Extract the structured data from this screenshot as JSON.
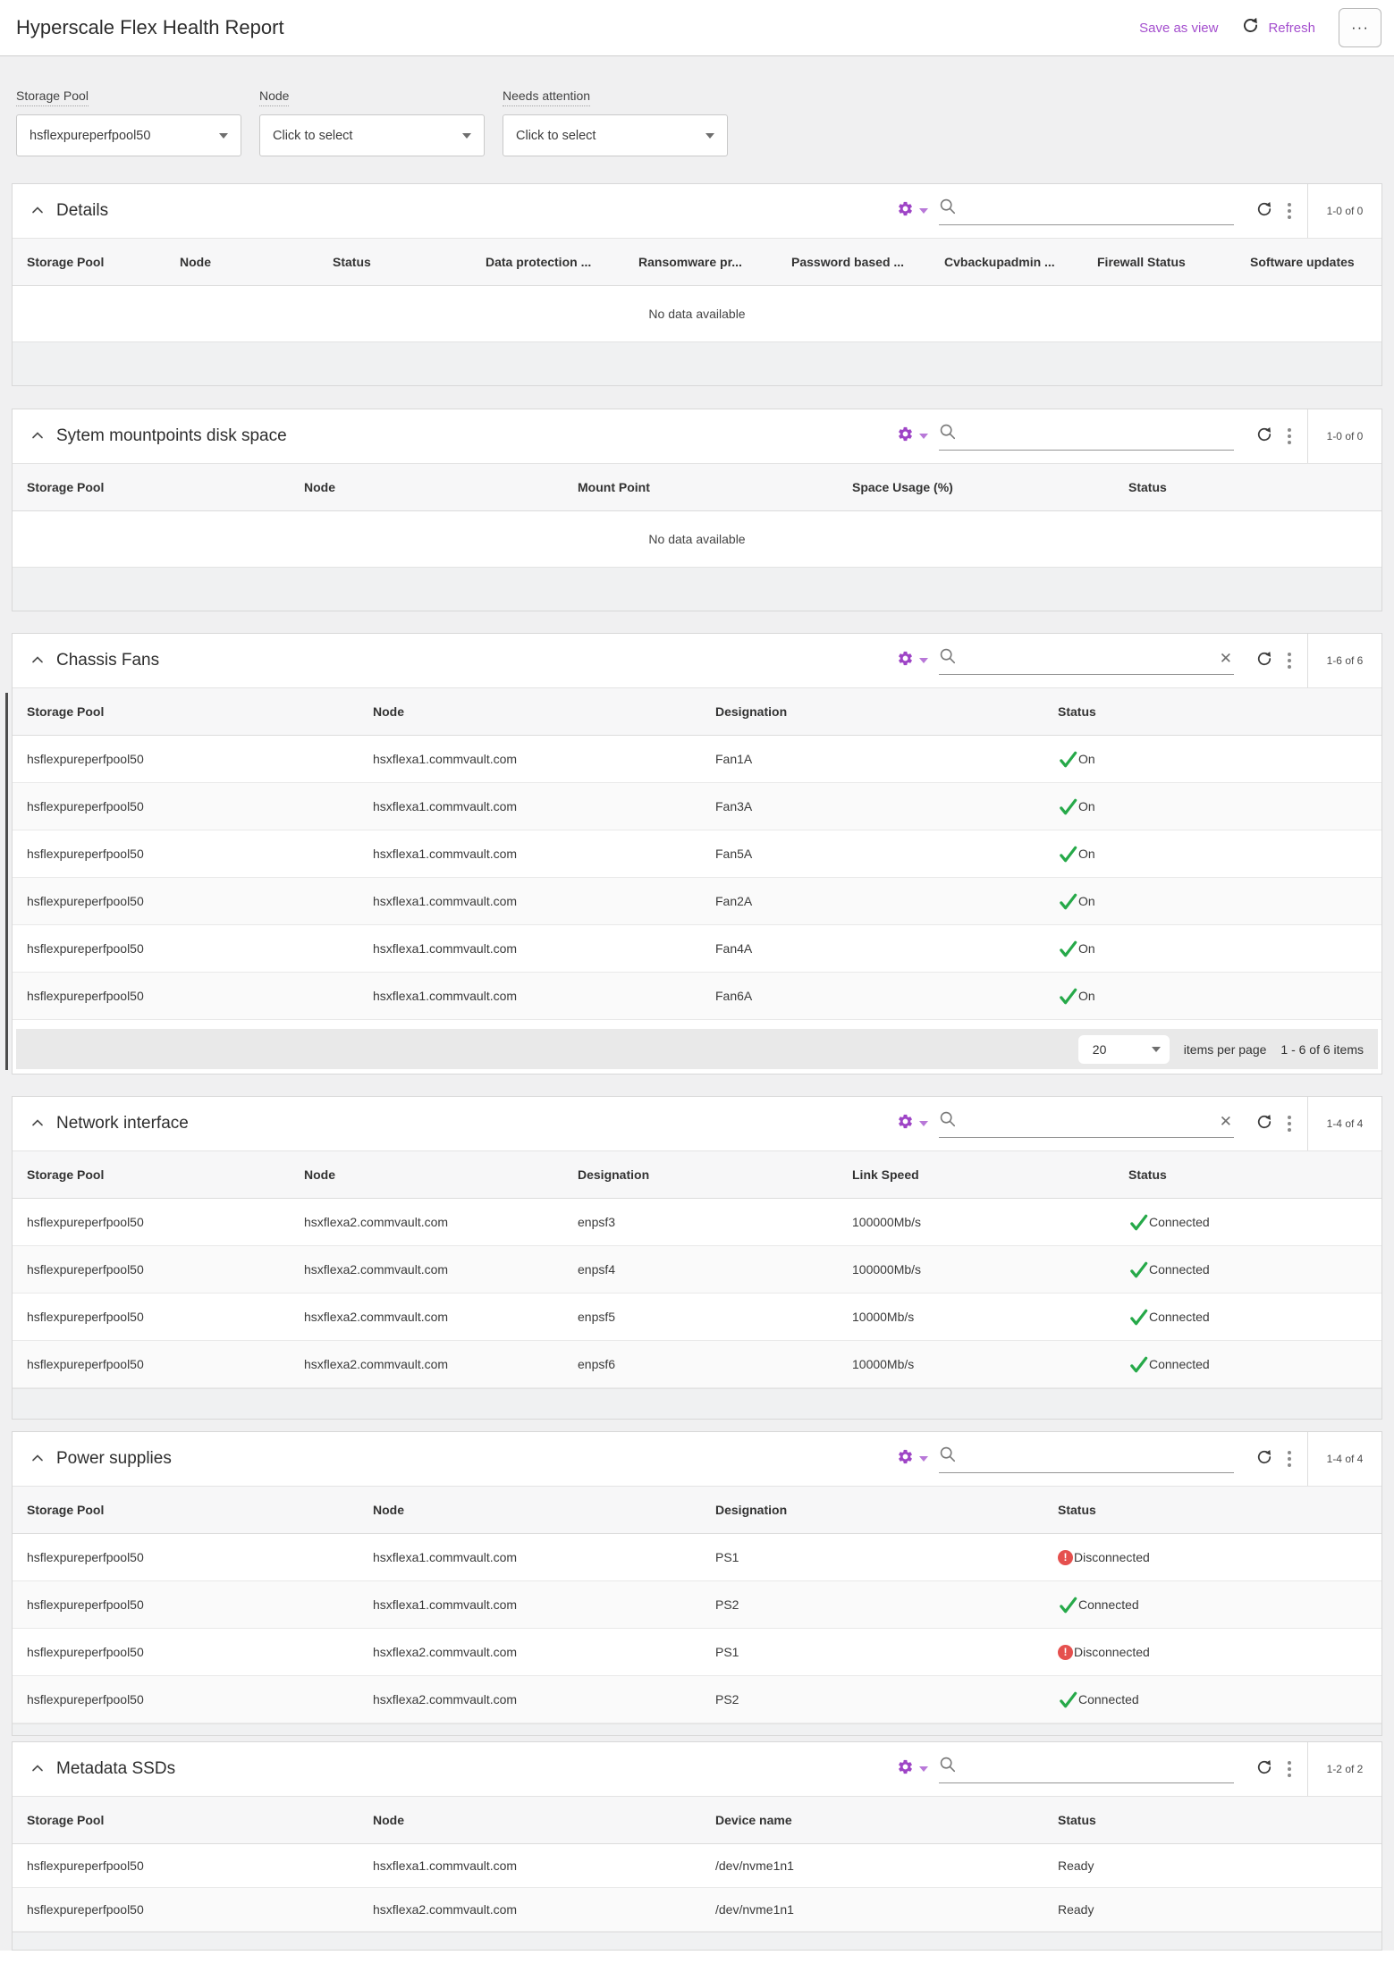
{
  "header": {
    "title": "Hyperscale Flex Health Report",
    "save_as_view_label": "Save as view",
    "refresh_label": "Refresh",
    "more_label": "···"
  },
  "colors": {
    "accent_purple": "#9e44c6",
    "accent_purple_light": "#b878d8",
    "status_ok_green": "#26a949",
    "status_error_red": "#e5504e"
  },
  "icons": {
    "settings": "gear-icon",
    "settings_caret": "chevron-down-icon",
    "search": "magnifier-icon",
    "clear": "x-icon",
    "refresh": "circular-arrow-icon",
    "more": "kebab-dots-icon",
    "collapse": "chevron-up-icon",
    "status_ok": "green-check-icon",
    "status_error": "red-exclamation-icon"
  },
  "filters": [
    {
      "label": "Storage Pool",
      "value": "hsflexpureperfpool50"
    },
    {
      "label": "Node",
      "value": "Click to select"
    },
    {
      "label": "Needs attention",
      "value": "Click to select"
    }
  ],
  "pagination_chassis": {
    "page_size": "20",
    "items_per_page_label": "items per page",
    "range_label": "1 - 6 of 6 items"
  },
  "sections": {
    "details": {
      "title": "Details",
      "count": "1-0 of 0",
      "columns": [
        "Storage Pool",
        "Node",
        "Status",
        "Data protection ...",
        "Ransomware pr...",
        "Password based ...",
        "Cvbackupadmin ...",
        "Firewall Status",
        "Software updates"
      ],
      "empty_text": "No data available",
      "rows": []
    },
    "mountpoints": {
      "title": "Sytem mountpoints disk space",
      "count": "1-0 of 0",
      "columns": [
        "Storage Pool",
        "Node",
        "Mount Point",
        "Space Usage (%)",
        "Status"
      ],
      "empty_text": "No data available",
      "rows": []
    },
    "chassis_fans": {
      "title": "Chassis Fans",
      "count": "1-6 of 6",
      "columns": [
        "Storage Pool",
        "Node",
        "Designation",
        "Status"
      ],
      "rows": [
        [
          "hsflexpureperfpool50",
          "hsxflexa1.commvault.com",
          "Fan1A",
          {
            "icon": "ok",
            "text": "On"
          }
        ],
        [
          "hsflexpureperfpool50",
          "hsxflexa1.commvault.com",
          "Fan3A",
          {
            "icon": "ok",
            "text": "On"
          }
        ],
        [
          "hsflexpureperfpool50",
          "hsxflexa1.commvault.com",
          "Fan5A",
          {
            "icon": "ok",
            "text": "On"
          }
        ],
        [
          "hsflexpureperfpool50",
          "hsxflexa1.commvault.com",
          "Fan2A",
          {
            "icon": "ok",
            "text": "On"
          }
        ],
        [
          "hsflexpureperfpool50",
          "hsxflexa1.commvault.com",
          "Fan4A",
          {
            "icon": "ok",
            "text": "On"
          }
        ],
        [
          "hsflexpureperfpool50",
          "hsxflexa1.commvault.com",
          "Fan6A",
          {
            "icon": "ok",
            "text": "On"
          }
        ]
      ]
    },
    "network_interface": {
      "title": "Network interface",
      "count": "1-4 of 4",
      "columns": [
        "Storage Pool",
        "Node",
        "Designation",
        "Link Speed",
        "Status"
      ],
      "rows": [
        [
          "hsflexpureperfpool50",
          "hsxflexa2.commvault.com",
          "enpsf3",
          "100000Mb/s",
          {
            "icon": "ok",
            "text": "Connected"
          }
        ],
        [
          "hsflexpureperfpool50",
          "hsxflexa2.commvault.com",
          "enpsf4",
          "100000Mb/s",
          {
            "icon": "ok",
            "text": "Connected"
          }
        ],
        [
          "hsflexpureperfpool50",
          "hsxflexa2.commvault.com",
          "enpsf5",
          "10000Mb/s",
          {
            "icon": "ok",
            "text": "Connected"
          }
        ],
        [
          "hsflexpureperfpool50",
          "hsxflexa2.commvault.com",
          "enpsf6",
          "10000Mb/s",
          {
            "icon": "ok",
            "text": "Connected"
          }
        ]
      ]
    },
    "power_supplies": {
      "title": "Power supplies",
      "count": "1-4 of 4",
      "columns": [
        "Storage Pool",
        "Node",
        "Designation",
        "Status"
      ],
      "rows": [
        [
          "hsflexpureperfpool50",
          "hsxflexa1.commvault.com",
          "PS1",
          {
            "icon": "error",
            "text": "Disconnected"
          }
        ],
        [
          "hsflexpureperfpool50",
          "hsxflexa1.commvault.com",
          "PS2",
          {
            "icon": "ok",
            "text": "Connected"
          }
        ],
        [
          "hsflexpureperfpool50",
          "hsxflexa2.commvault.com",
          "PS1",
          {
            "icon": "error",
            "text": "Disconnected"
          }
        ],
        [
          "hsflexpureperfpool50",
          "hsxflexa2.commvault.com",
          "PS2",
          {
            "icon": "ok",
            "text": "Connected"
          }
        ]
      ]
    },
    "metadata_ssds": {
      "title": "Metadata SSDs",
      "count": "1-2 of 2",
      "columns": [
        "Storage Pool",
        "Node",
        "Device name",
        "Status"
      ],
      "rows": [
        [
          "hsflexpureperfpool50",
          "hsxflexa1.commvault.com",
          "/dev/nvme1n1",
          "Ready"
        ],
        [
          "hsflexpureperfpool50",
          "hsxflexa2.commvault.com",
          "/dev/nvme1n1",
          "Ready"
        ]
      ]
    }
  }
}
